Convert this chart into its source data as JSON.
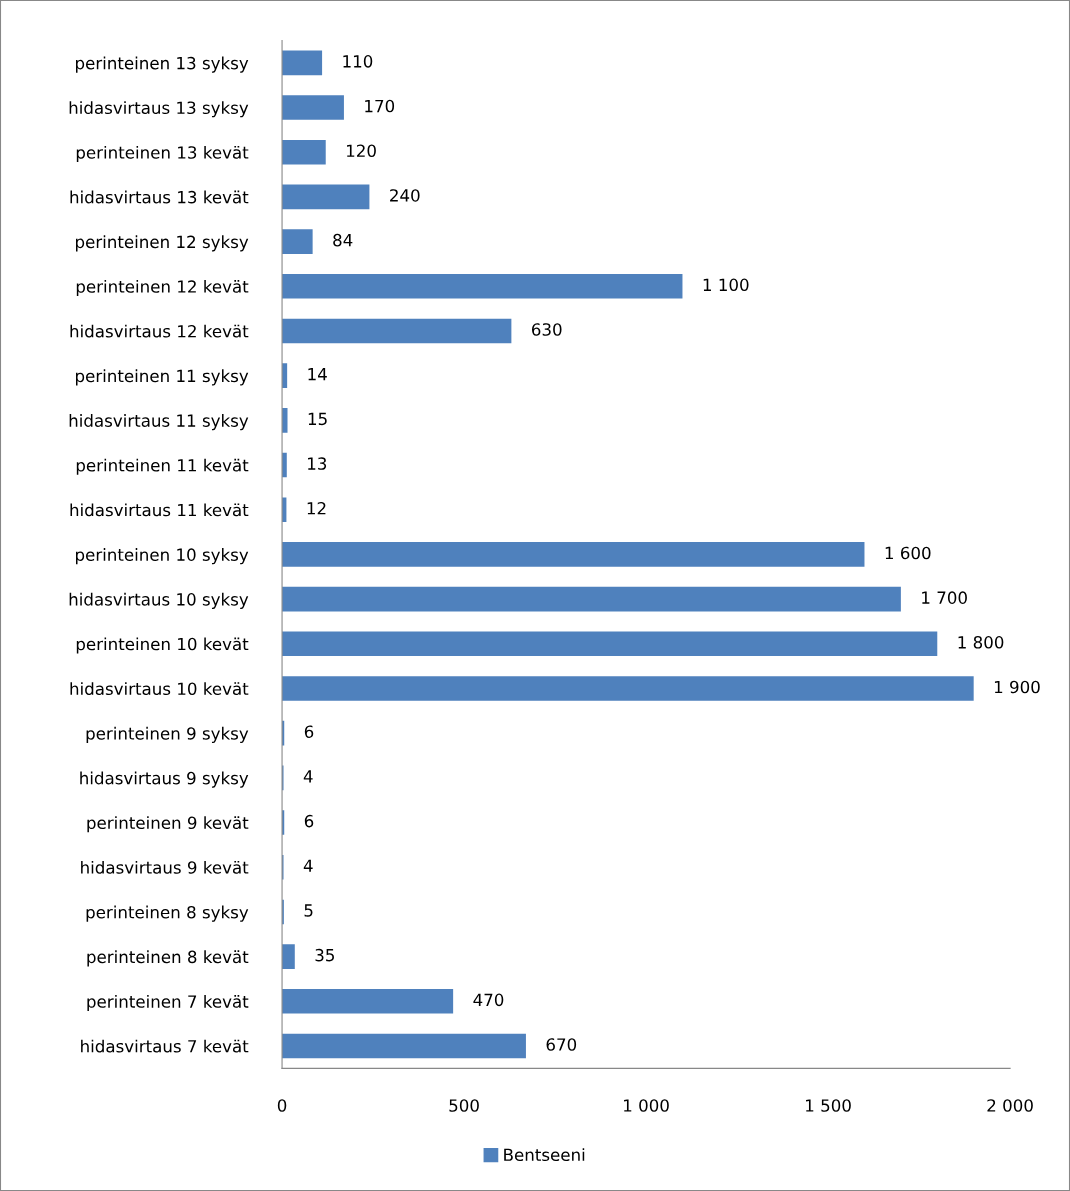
{
  "chart_data": {
    "type": "bar",
    "orientation": "horizontal",
    "categories": [
      "perinteinen 13 syksy",
      "hidasvirtaus 13 syksy",
      "perinteinen 13 kevät",
      "hidasvirtaus 13 kevät",
      "perinteinen 12 syksy",
      "perinteinen 12 kevät",
      "hidasvirtaus 12 kevät",
      "perinteinen 11 syksy",
      "hidasvirtaus 11 syksy",
      "perinteinen 11 kevät",
      "hidasvirtaus 11 kevät",
      "perinteinen 10 syksy",
      "hidasvirtaus 10 syksy",
      "perinteinen 10 kevät",
      "hidasvirtaus 10 kevät",
      "perinteinen 9 syksy",
      "hidasvirtaus 9 syksy",
      "perinteinen 9 kevät",
      "hidasvirtaus 9 kevät",
      "perinteinen 8 syksy",
      "perinteinen 8 kevät",
      "perinteinen 7 kevät",
      "hidasvirtaus 7 kevät"
    ],
    "series": [
      {
        "name": "Bentseeni",
        "color": "#4f81bd",
        "values": [
          110,
          170,
          120,
          240,
          84,
          1100,
          630,
          14,
          15,
          13,
          12,
          1600,
          1700,
          1800,
          1900,
          6,
          4,
          6,
          4,
          5,
          35,
          470,
          670
        ],
        "value_labels": [
          "110",
          "170",
          "120",
          "240",
          "84",
          "1 100",
          "630",
          "14",
          "15",
          "13",
          "12",
          "1 600",
          "1 700",
          "1 800",
          "1 900",
          "6",
          "4",
          "6",
          "4",
          "5",
          "35",
          "470",
          "670"
        ]
      }
    ],
    "xlim": [
      0,
      2000
    ],
    "xticks": [
      0,
      500,
      {
        "value": 1000,
        "label": "1 000"
      },
      {
        "value": 1500,
        "label": "1 500"
      },
      {
        "value": 2000,
        "label": "2 000"
      }
    ],
    "grid": false,
    "legend": "bottom"
  }
}
